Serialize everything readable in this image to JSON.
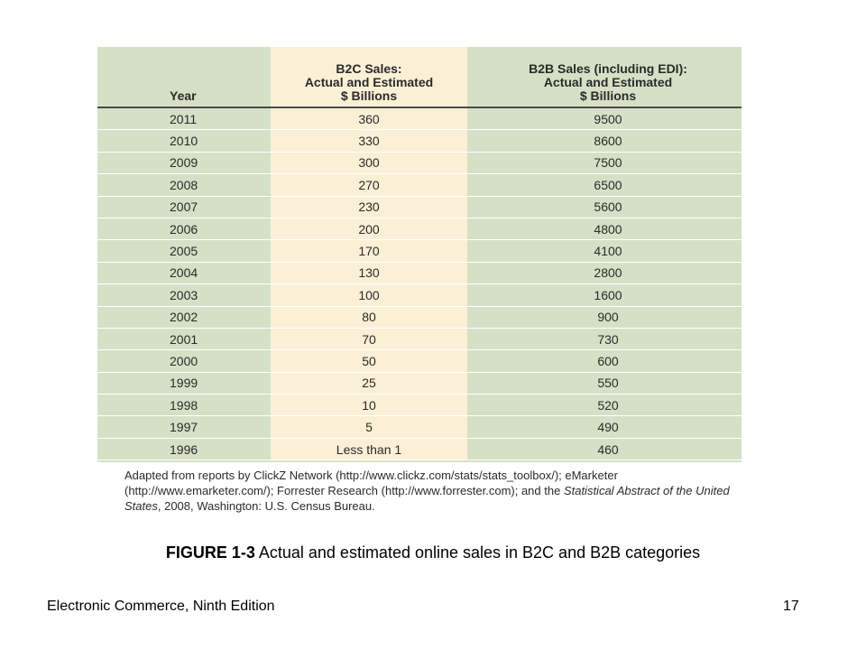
{
  "chart_data": {
    "type": "table",
    "columns": [
      {
        "key": "year",
        "lines": [
          "Year"
        ]
      },
      {
        "key": "b2c",
        "lines": [
          "B2C Sales:",
          "Actual and Estimated",
          "$ Billions"
        ]
      },
      {
        "key": "b2b",
        "lines": [
          "B2B Sales (including EDI):",
          "Actual and Estimated",
          "$ Billions"
        ]
      }
    ],
    "rows": [
      [
        "2011",
        "360",
        "9500"
      ],
      [
        "2010",
        "330",
        "8600"
      ],
      [
        "2009",
        "300",
        "7500"
      ],
      [
        "2008",
        "270",
        "6500"
      ],
      [
        "2007",
        "230",
        "5600"
      ],
      [
        "2006",
        "200",
        "4800"
      ],
      [
        "2005",
        "170",
        "4100"
      ],
      [
        "2004",
        "130",
        "2800"
      ],
      [
        "2003",
        "100",
        "1600"
      ],
      [
        "2002",
        "80",
        "900"
      ],
      [
        "2001",
        "70",
        "730"
      ],
      [
        "2000",
        "50",
        "600"
      ],
      [
        "1999",
        "25",
        "550"
      ],
      [
        "1998",
        "10",
        "520"
      ],
      [
        "1997",
        "5",
        "490"
      ],
      [
        "1996",
        "Less than 1",
        "460"
      ]
    ],
    "colors": {
      "table_background": "#d6e0c6",
      "b2c_column_background": "#fbf0d6"
    }
  },
  "source_note": {
    "part1": "Adapted from reports by ClickZ Network (http://www.clickz.com/stats/stats_toolbox/); eMarketer (http://www.emarketer.com/); Forrester Research (http://www.forrester.com); and the ",
    "italic": "Statistical Abstract of the United States",
    "part2": ", 2008, Washington: U.S. Census Bureau."
  },
  "caption": {
    "label": "FIGURE 1-3",
    "text": " Actual and estimated online sales in B2C and B2B categories"
  },
  "footer": {
    "book_title": "Electronic Commerce, Ninth Edition",
    "page_number": "17"
  }
}
